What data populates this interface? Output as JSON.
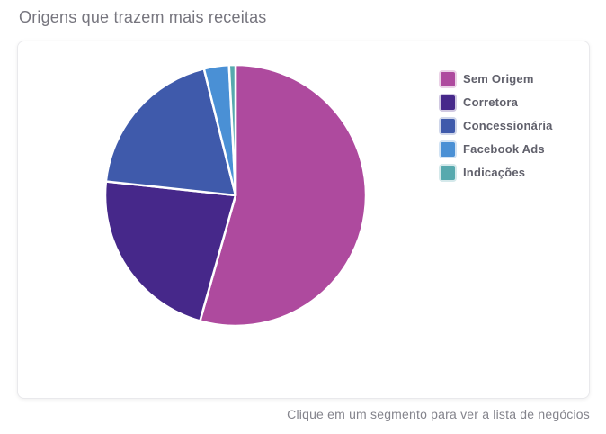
{
  "header": {
    "title": "Origens que trazem mais receitas"
  },
  "footer": {
    "hint": "Clique em um segmento para ver a lista de negócios"
  },
  "chart_data": {
    "type": "pie",
    "title": "Origens que trazem mais receitas",
    "categories": [
      "Sem Origem",
      "Corretora",
      "Concessionária",
      "Facebook Ads",
      "Indicações"
    ],
    "values": [
      54.4,
      22.3,
      19.4,
      3.1,
      0.8
    ],
    "unit": "percent_estimated",
    "colors": [
      "#ae4a9e",
      "#46288a",
      "#3f5aab",
      "#4a90d5",
      "#57a9ae"
    ],
    "slice_border_color": "#ffffff",
    "start_angle_deg": 0,
    "direction": "clockwise",
    "legend_position": "right",
    "data_labels": "none"
  }
}
